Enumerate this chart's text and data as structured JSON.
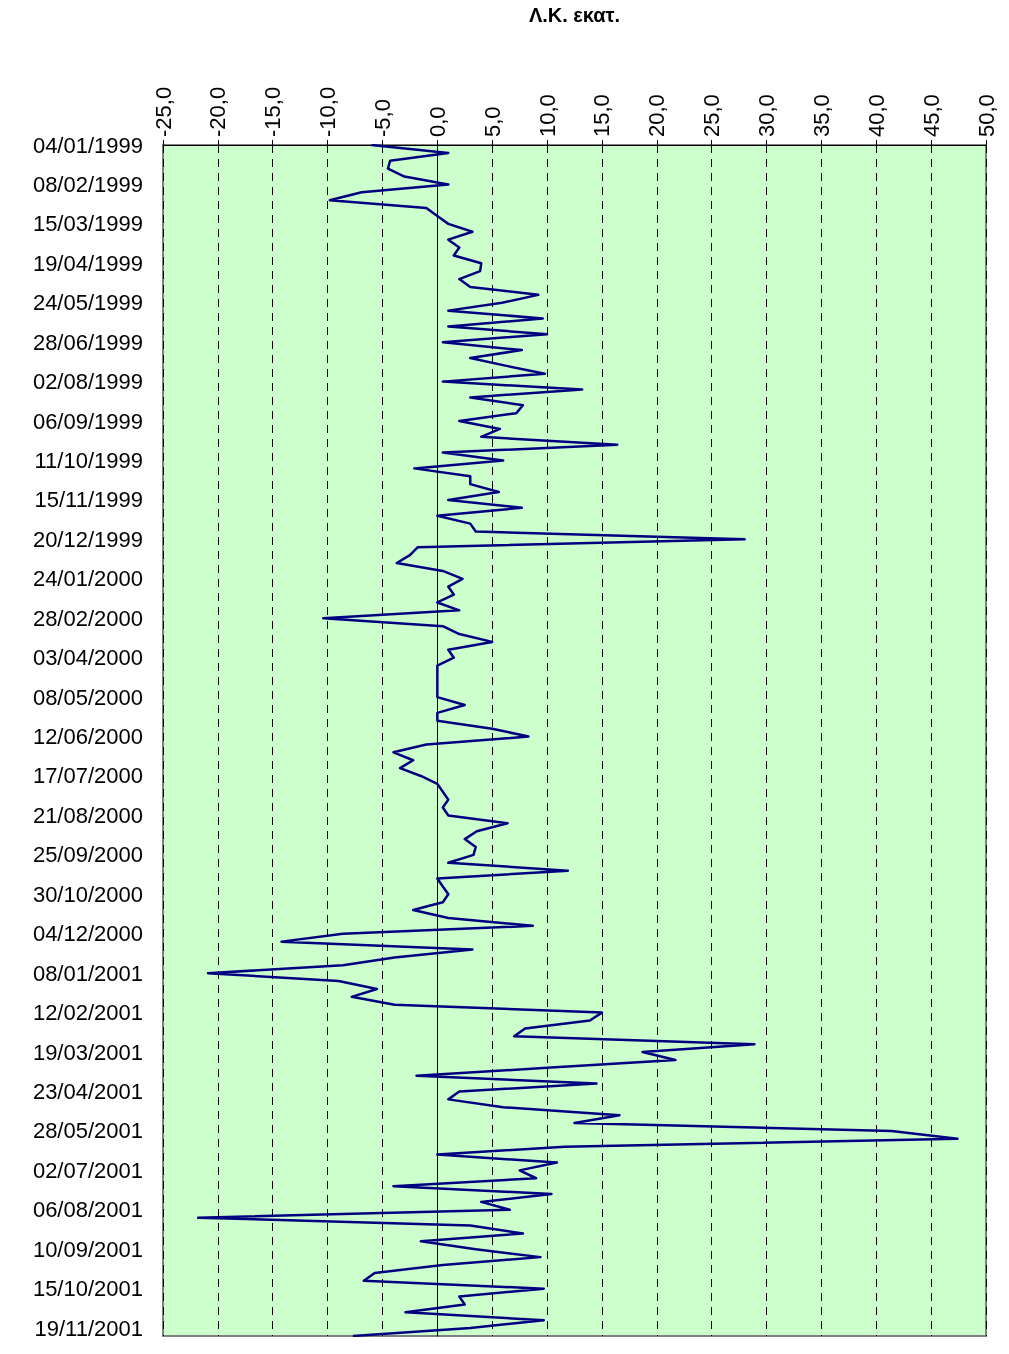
{
  "chart_data": {
    "type": "line",
    "orientation": "horizontal",
    "xlabel": "Λ.Κ. εκατ.",
    "color": "#000080",
    "marker": "none",
    "grid": "x",
    "xlim": [
      -25,
      50
    ],
    "xticks": [
      {
        "value": -25,
        "label": "-25,0"
      },
      {
        "value": -20,
        "label": "-20,0"
      },
      {
        "value": -15,
        "label": "-15,0"
      },
      {
        "value": -10,
        "label": "-10,0"
      },
      {
        "value": -5,
        "label": "-5,0"
      },
      {
        "value": 0,
        "label": "0,0"
      },
      {
        "value": 5,
        "label": "5,0"
      },
      {
        "value": 10,
        "label": "10,0"
      },
      {
        "value": 15,
        "label": "15,0"
      },
      {
        "value": 20,
        "label": "20,0"
      },
      {
        "value": 25,
        "label": "25,0"
      },
      {
        "value": 30,
        "label": "30,0"
      },
      {
        "value": 35,
        "label": "35,0"
      },
      {
        "value": 40,
        "label": "40,0"
      },
      {
        "value": 45,
        "label": "45,0"
      },
      {
        "value": 50,
        "label": "50,0"
      }
    ],
    "categories": [
      "04/01/1999",
      null,
      null,
      null,
      null,
      "08/02/1999",
      null,
      null,
      null,
      null,
      "15/03/1999",
      null,
      null,
      null,
      null,
      "19/04/1999",
      null,
      null,
      null,
      null,
      "24/05/1999",
      null,
      null,
      null,
      null,
      "28/06/1999",
      null,
      null,
      null,
      null,
      "02/08/1999",
      null,
      null,
      null,
      null,
      "06/09/1999",
      null,
      null,
      null,
      null,
      "11/10/1999",
      null,
      null,
      null,
      null,
      "15/11/1999",
      null,
      null,
      null,
      null,
      "20/12/1999",
      null,
      null,
      null,
      null,
      "24/01/2000",
      null,
      null,
      null,
      null,
      "28/02/2000",
      null,
      null,
      null,
      null,
      "03/04/2000",
      null,
      null,
      null,
      null,
      "08/05/2000",
      null,
      null,
      null,
      null,
      "12/06/2000",
      null,
      null,
      null,
      null,
      "17/07/2000",
      null,
      null,
      null,
      null,
      "21/08/2000",
      null,
      null,
      null,
      null,
      "25/09/2000",
      null,
      null,
      null,
      null,
      "30/10/2000",
      null,
      null,
      null,
      null,
      "04/12/2000",
      null,
      null,
      null,
      null,
      "08/01/2001",
      null,
      null,
      null,
      null,
      "12/02/2001",
      null,
      null,
      null,
      null,
      "19/03/2001",
      null,
      null,
      null,
      null,
      "23/04/2001",
      null,
      null,
      null,
      null,
      "28/05/2001",
      null,
      null,
      null,
      null,
      "02/07/2001",
      null,
      null,
      null,
      null,
      "06/08/2001",
      null,
      null,
      null,
      null,
      "10/09/2001",
      null,
      null,
      null,
      null,
      "15/10/2001",
      null,
      null,
      null,
      null,
      "19/11/2001",
      null
    ],
    "values": [
      -6,
      1,
      -4.3,
      -4.5,
      -3,
      1,
      -6.9,
      -9.8,
      -1,
      0,
      1,
      3.2,
      1,
      2,
      1.5,
      4,
      3.9,
      2,
      3,
      9.2,
      5.9,
      1,
      9.6,
      1,
      10,
      0.5,
      7.7,
      3,
      6.3,
      9.8,
      0.5,
      13.2,
      3,
      7.8,
      7.2,
      2,
      5.7,
      4,
      16.4,
      0.5,
      6,
      -2.1,
      3,
      3,
      5.6,
      1,
      7.7,
      0,
      3,
      3.5,
      28,
      -1.8,
      -2.5,
      -3.7,
      0.5,
      2.3,
      1,
      1.5,
      0,
      2,
      -10.4,
      0.5,
      2,
      5,
      1,
      1.5,
      0,
      0,
      0,
      0,
      0,
      2.5,
      0,
      0,
      5,
      8.3,
      -1,
      -4,
      -2.2,
      -3.4,
      -1.5,
      0,
      0.5,
      1,
      0.5,
      1,
      6.4,
      3.6,
      2.5,
      3.5,
      3.3,
      1,
      11.9,
      0,
      0.5,
      1,
      0.5,
      -2.2,
      1,
      8.7,
      -8.6,
      -14.2,
      3.2,
      -3.9,
      -8.6,
      -20.9,
      -9,
      -5.5,
      -7.8,
      -3.9,
      15,
      13.9,
      8,
      7,
      28.9,
      18.7,
      21.7,
      10,
      -1.9,
      14.5,
      2,
      1,
      6,
      16.6,
      12.5,
      41.4,
      47.4,
      11.6,
      0,
      10.9,
      7.5,
      9,
      -4,
      10.4,
      4,
      6.6,
      -21.8,
      3,
      7.8,
      -1.5,
      3.5,
      9.4,
      0.5,
      -5.7,
      -6.7,
      9.7,
      2,
      2.5,
      -2.9,
      9.7,
      3,
      -7.7
    ]
  }
}
